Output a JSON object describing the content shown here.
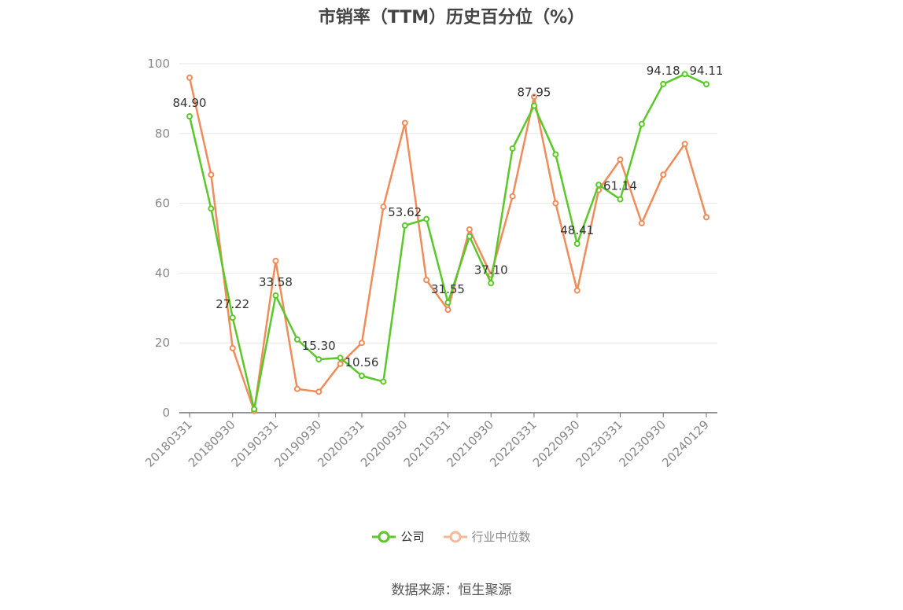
{
  "chart_data": {
    "type": "line",
    "title": "市销率（TTM）历史百分位（%）",
    "x": [
      "20180331",
      "20180630",
      "20180930",
      "20181231",
      "20190331",
      "20190630",
      "20190930",
      "20191231",
      "20200331",
      "20200630",
      "20200930",
      "20201231",
      "20210331",
      "20210630",
      "20210930",
      "20211231",
      "20220331",
      "20220630",
      "20220930",
      "20221231",
      "20230331",
      "20230630",
      "20230930",
      "20231231",
      "20240129"
    ],
    "x_tick_labels": [
      "20180331",
      "20180930",
      "20190331",
      "20190930",
      "20200331",
      "20200930",
      "20210331",
      "20210930",
      "20220331",
      "20220930",
      "20230331",
      "20230930",
      "20240129"
    ],
    "ylim": [
      0,
      100
    ],
    "yticks": [
      0,
      20,
      40,
      60,
      80,
      100
    ],
    "grid": true,
    "legend_position": "bottom",
    "series": [
      {
        "name": "公司",
        "color": "#5bc72a",
        "values": [
          84.9,
          58.5,
          27.22,
          1.0,
          33.58,
          21.0,
          15.3,
          15.7,
          10.56,
          8.9,
          53.62,
          55.5,
          31.55,
          50.5,
          37.1,
          75.7,
          87.95,
          74.0,
          48.41,
          65.3,
          61.14,
          82.7,
          94.18,
          97.0,
          94.11
        ],
        "labels": {
          "0": "84.90",
          "2": "27.22",
          "4": "33.58",
          "6": "15.30",
          "8": "10.56",
          "10": "53.62",
          "12": "31.55",
          "14": "37.10",
          "16": "87.95",
          "18": "48.41",
          "20": "61.14",
          "22": "94.18",
          "24": "94.11"
        }
      },
      {
        "name": "行业中位数",
        "color": "#ef8c5a",
        "values": [
          96.0,
          68.2,
          18.5,
          0.5,
          43.5,
          6.8,
          6.0,
          14.0,
          20.0,
          59.0,
          83.0,
          38.0,
          29.5,
          52.5,
          39.5,
          62.0,
          90.5,
          60.0,
          35.0,
          63.8,
          72.5,
          54.3,
          68.2,
          77.0,
          56.0
        ]
      }
    ]
  },
  "legend": {
    "company": "公司",
    "industry": "行业中位数"
  },
  "source": "数据来源：恒生聚源"
}
